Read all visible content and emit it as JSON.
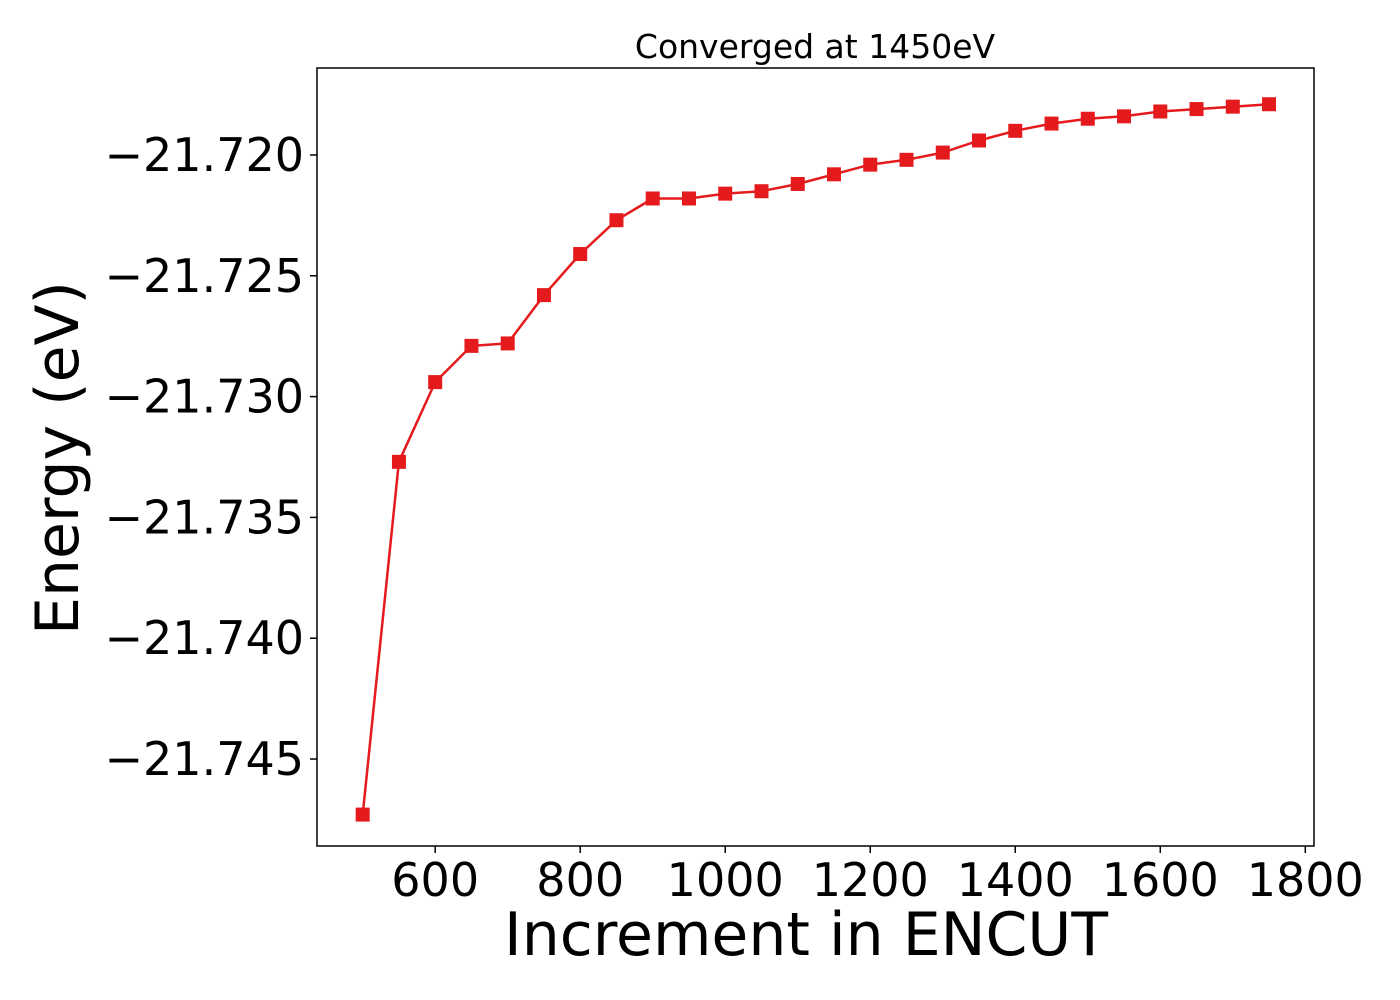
{
  "chart_data": {
    "type": "line",
    "title": "Converged at 1450eV",
    "xlabel": "Increment in ENCUT",
    "ylabel": "Energy (eV)",
    "xlim": [
      437,
      1812
    ],
    "ylim": [
      -21.7486,
      -21.7164
    ],
    "x_ticks": [
      600,
      800,
      1000,
      1200,
      1400,
      1600,
      1800
    ],
    "x_tick_labels": [
      "600",
      "800",
      "1000",
      "1200",
      "1400",
      "1600",
      "1800"
    ],
    "y_ticks": [
      -21.72,
      -21.725,
      -21.73,
      -21.735,
      -21.74,
      -21.745
    ],
    "y_tick_labels": [
      "−21.720",
      "−21.725",
      "−21.730",
      "−21.735",
      "−21.740",
      "−21.745"
    ],
    "grid": false,
    "series": [
      {
        "color": "#e41a1c",
        "marker": "square",
        "x": [
          500,
          550,
          600,
          650,
          700,
          750,
          800,
          850,
          900,
          950,
          1000,
          1050,
          1100,
          1150,
          1200,
          1250,
          1300,
          1350,
          1400,
          1450,
          1500,
          1550,
          1600,
          1650,
          1700,
          1750
        ],
        "y": [
          -21.7473,
          -21.7327,
          -21.7294,
          -21.7279,
          -21.7278,
          -21.7258,
          -21.7241,
          -21.7227,
          -21.7218,
          -21.7218,
          -21.7216,
          -21.7215,
          -21.7212,
          -21.7208,
          -21.7204,
          -21.7202,
          -21.7199,
          -21.7194,
          -21.719,
          -21.7187,
          -21.7185,
          -21.7184,
          -21.7182,
          -21.7181,
          -21.718,
          -21.7179
        ]
      }
    ]
  }
}
